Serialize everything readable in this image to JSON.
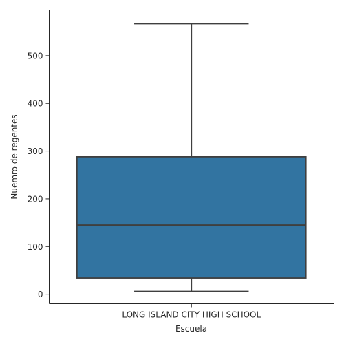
{
  "chart_data": {
    "type": "box",
    "xlabel": "Escuela",
    "ylabel": "Nuemro de regentes",
    "categories": [
      "LONG ISLAND CITY HIGH SCHOOL"
    ],
    "yticks": [
      0,
      100,
      200,
      300,
      400,
      500
    ],
    "ylim": [
      -20,
      595
    ],
    "grid": false,
    "boxes": [
      {
        "category": "LONG ISLAND CITY HIGH SCHOOL",
        "whisker_low": 6,
        "q1": 34,
        "median": 145,
        "q3": 288,
        "whisker_high": 567
      }
    ],
    "box_color": "#3274a1",
    "line_color": "#3f3f3f"
  }
}
